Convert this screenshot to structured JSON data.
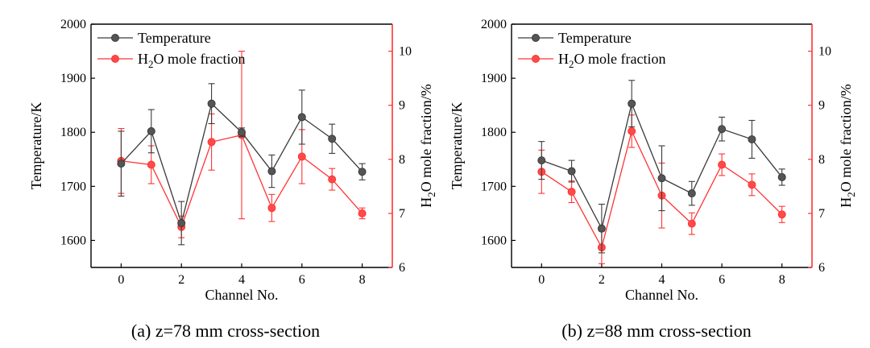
{
  "captions": [
    "(a) z=78 mm cross-section",
    "(b) z=88 mm cross-section"
  ],
  "colors": {
    "temperature": "#3a3a3a",
    "h2o": "#ff3333",
    "axis": "#000000"
  },
  "chart_data": [
    {
      "type": "line",
      "xlabel": "Channel No.",
      "ylabel": "Temperature/K",
      "ylabel_right": "H2O mole fraction/%",
      "xlim": [
        -1,
        9
      ],
      "xticks": [
        0,
        2,
        4,
        6,
        8
      ],
      "ylim": [
        1550,
        2000
      ],
      "yticks": [
        1600,
        1700,
        1800,
        1900,
        2000
      ],
      "ylim_right": [
        6,
        10.5
      ],
      "yticks_right": [
        6,
        7,
        8,
        9,
        10
      ],
      "legend": "top-left",
      "grid": false,
      "x": [
        0,
        1,
        2,
        3,
        4,
        5,
        6,
        7,
        8
      ],
      "series": [
        {
          "name": "Temperature",
          "axis": "left",
          "values": [
            1742,
            1802,
            1632,
            1853,
            1800,
            1728,
            1828,
            1788,
            1727
          ],
          "errors": [
            60,
            40,
            40,
            37,
            8,
            30,
            50,
            27,
            15
          ]
        },
        {
          "name": "H2O mole fraction",
          "axis": "right",
          "values": [
            7.97,
            7.9,
            6.75,
            8.32,
            8.45,
            7.1,
            8.05,
            7.63,
            7.0
          ],
          "errors": [
            0.6,
            0.35,
            0.2,
            0.52,
            1.55,
            0.25,
            0.5,
            0.2,
            0.1
          ]
        }
      ]
    },
    {
      "type": "line",
      "xlabel": "Channel No.",
      "ylabel": "Temperature/K",
      "ylabel_right": "H2O mole fraction/%",
      "xlim": [
        -1,
        9
      ],
      "xticks": [
        0,
        2,
        4,
        6,
        8
      ],
      "ylim": [
        1550,
        2000
      ],
      "yticks": [
        1600,
        1700,
        1800,
        1900,
        2000
      ],
      "ylim_right": [
        6,
        10.5
      ],
      "yticks_right": [
        6,
        7,
        8,
        9,
        10
      ],
      "legend": "top-left",
      "grid": false,
      "x": [
        0,
        1,
        2,
        3,
        4,
        5,
        6,
        7,
        8
      ],
      "series": [
        {
          "name": "Temperature",
          "axis": "left",
          "values": [
            1748,
            1728,
            1622,
            1853,
            1715,
            1687,
            1806,
            1787,
            1717
          ],
          "errors": [
            35,
            20,
            45,
            43,
            60,
            22,
            22,
            35,
            15
          ]
        },
        {
          "name": "H2O mole fraction",
          "axis": "right",
          "values": [
            7.77,
            7.4,
            6.37,
            8.52,
            7.33,
            6.81,
            7.9,
            7.53,
            6.98
          ],
          "errors": [
            0.4,
            0.2,
            0.3,
            0.3,
            0.6,
            0.2,
            0.2,
            0.2,
            0.15
          ]
        }
      ]
    }
  ]
}
